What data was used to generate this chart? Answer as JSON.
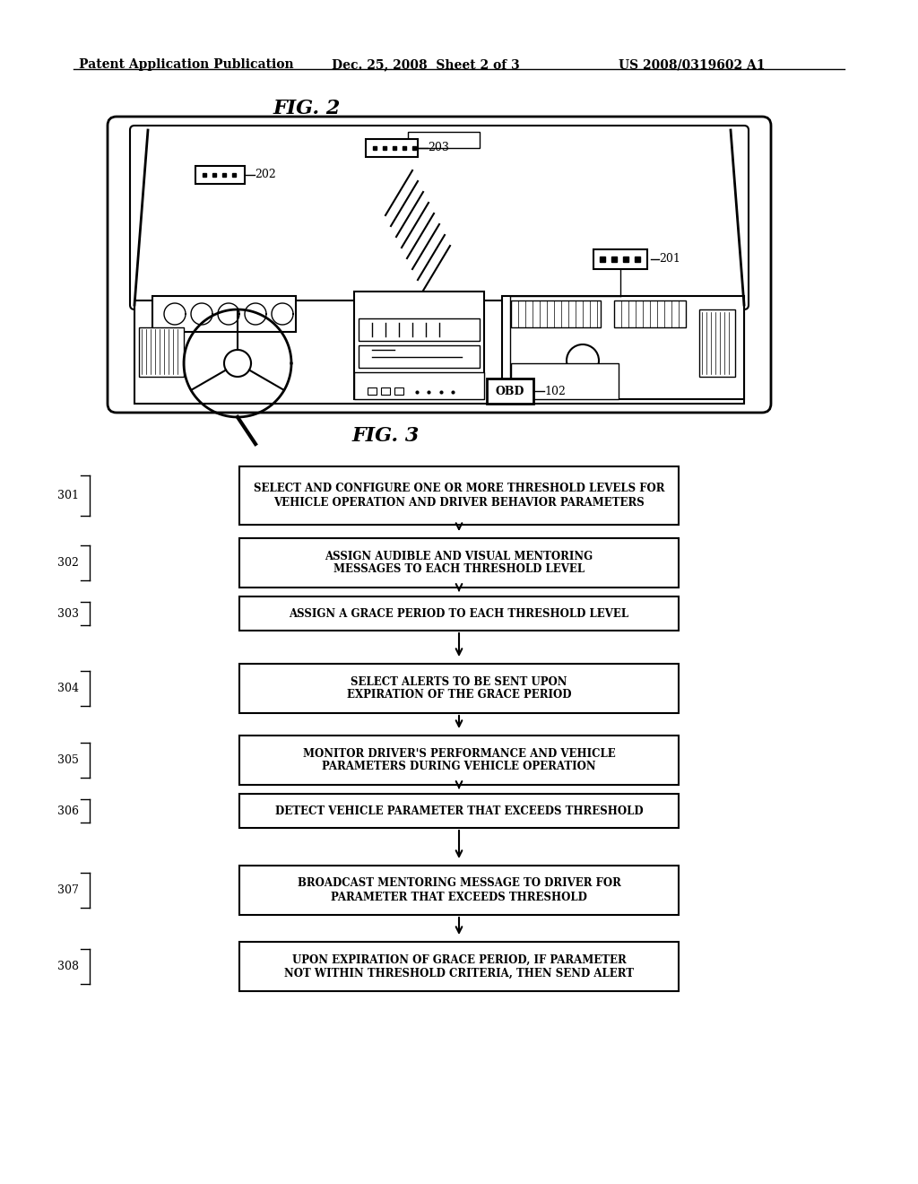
{
  "background_color": "#ffffff",
  "header_left": "Patent Application Publication",
  "header_mid": "Dec. 25, 2008  Sheet 2 of 3",
  "header_right": "US 2008/0319602 A1",
  "fig2_title": "FIG. 2",
  "fig3_title": "FIG. 3",
  "flowchart_steps": [
    {
      "id": "301",
      "text": "SELECT AND CONFIGURE ONE OR MORE THRESHOLD LEVELS FOR\nVEHICLE OPERATION AND DRIVER BEHAVIOR PARAMETERS"
    },
    {
      "id": "302",
      "text": "ASSIGN AUDIBLE AND VISUAL MENTORING\nMESSAGES TO EACH THRESHOLD LEVEL"
    },
    {
      "id": "303",
      "text": "ASSIGN A GRACE PERIOD TO EACH THRESHOLD LEVEL"
    },
    {
      "id": "304",
      "text": "SELECT ALERTS TO BE SENT UPON\nEXPIRATION OF THE GRACE PERIOD"
    },
    {
      "id": "305",
      "text": "MONITOR DRIVER'S PERFORMANCE AND VEHICLE\nPARAMETERS DURING VEHICLE OPERATION"
    },
    {
      "id": "306",
      "text": "DETECT VEHICLE PARAMETER THAT EXCEEDS THRESHOLD"
    },
    {
      "id": "307",
      "text": "BROADCAST MENTORING MESSAGE TO DRIVER FOR\nPARAMETER THAT EXCEEDS THRESHOLD"
    },
    {
      "id": "308",
      "text": "UPON EXPIRATION OF GRACE PERIOD, IF PARAMETER\nNOT WITHIN THRESHOLD CRITERIA, THEN SEND ALERT"
    }
  ]
}
